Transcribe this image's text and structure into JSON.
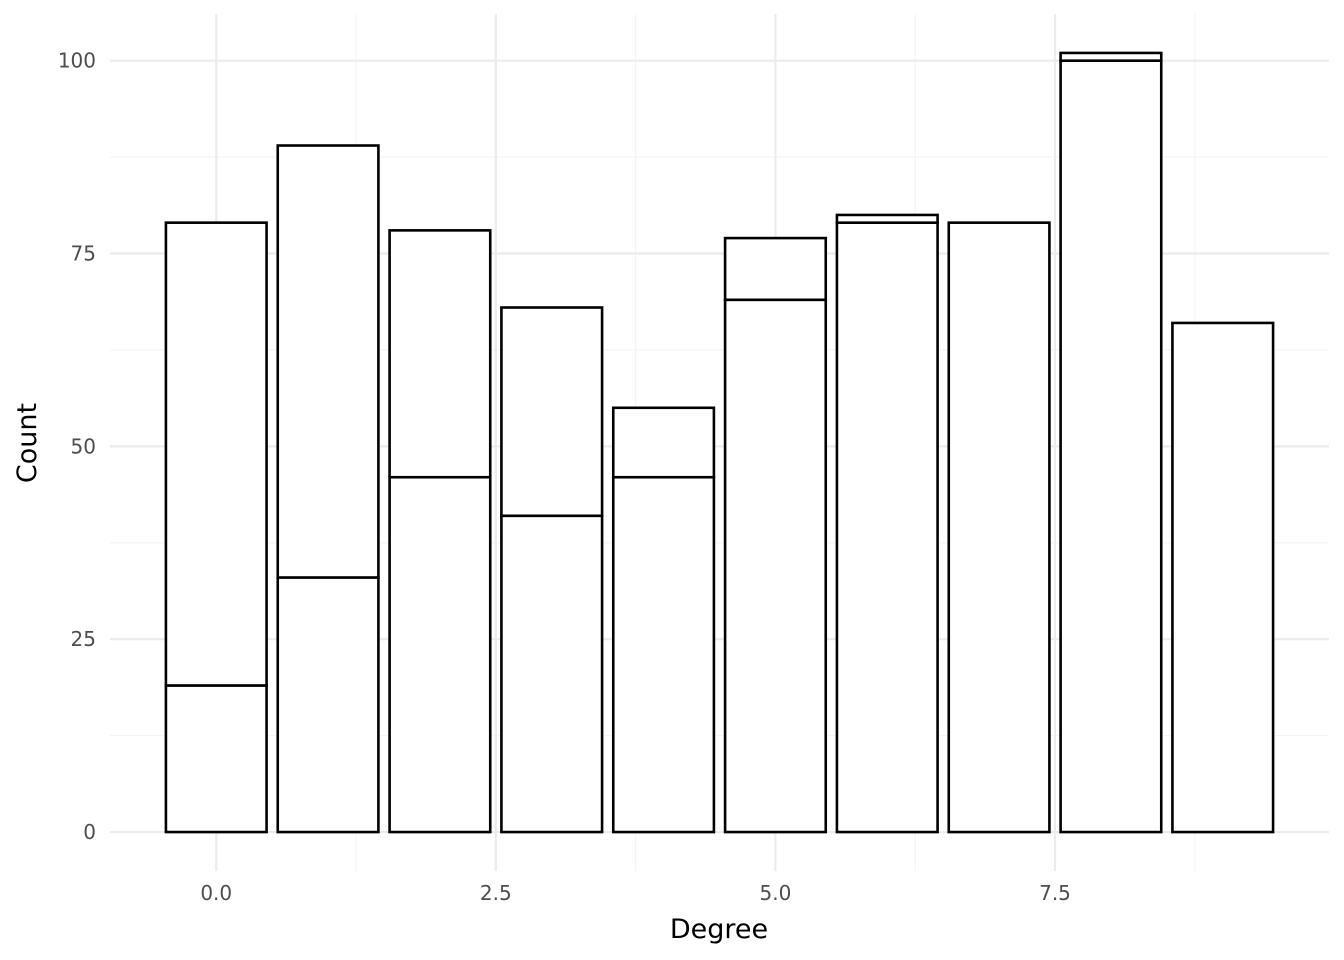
{
  "chart_data": {
    "type": "bar",
    "stacked": true,
    "xlabel": "Degree",
    "ylabel": "Count",
    "x": [
      0,
      1,
      2,
      3,
      4,
      5,
      6,
      7,
      8,
      9
    ],
    "series": [
      {
        "values": [
          19,
          33,
          46,
          41,
          46,
          69,
          79,
          79,
          100,
          66
        ]
      },
      {
        "values": [
          60,
          56,
          32,
          27,
          9,
          8,
          1,
          0,
          1,
          0
        ]
      }
    ],
    "totals": [
      79,
      89,
      78,
      68,
      55,
      77,
      80,
      79,
      101,
      66
    ],
    "xlim": [
      -0.95,
      9.95
    ],
    "ylim": [
      -5.05,
      106.05
    ],
    "xticks": [
      {
        "value": 0,
        "label": "0.0"
      },
      {
        "value": 2.5,
        "label": "2.5"
      },
      {
        "value": 5,
        "label": "5.0"
      },
      {
        "value": 7.5,
        "label": "7.5"
      }
    ],
    "yticks": [
      {
        "value": 0,
        "label": "0"
      },
      {
        "value": 25,
        "label": "25"
      },
      {
        "value": 50,
        "label": "50"
      },
      {
        "value": 75,
        "label": "75"
      },
      {
        "value": 100,
        "label": "100"
      }
    ],
    "bar_fill": "#ffffff",
    "bar_stroke": "#000000",
    "grid": true
  }
}
